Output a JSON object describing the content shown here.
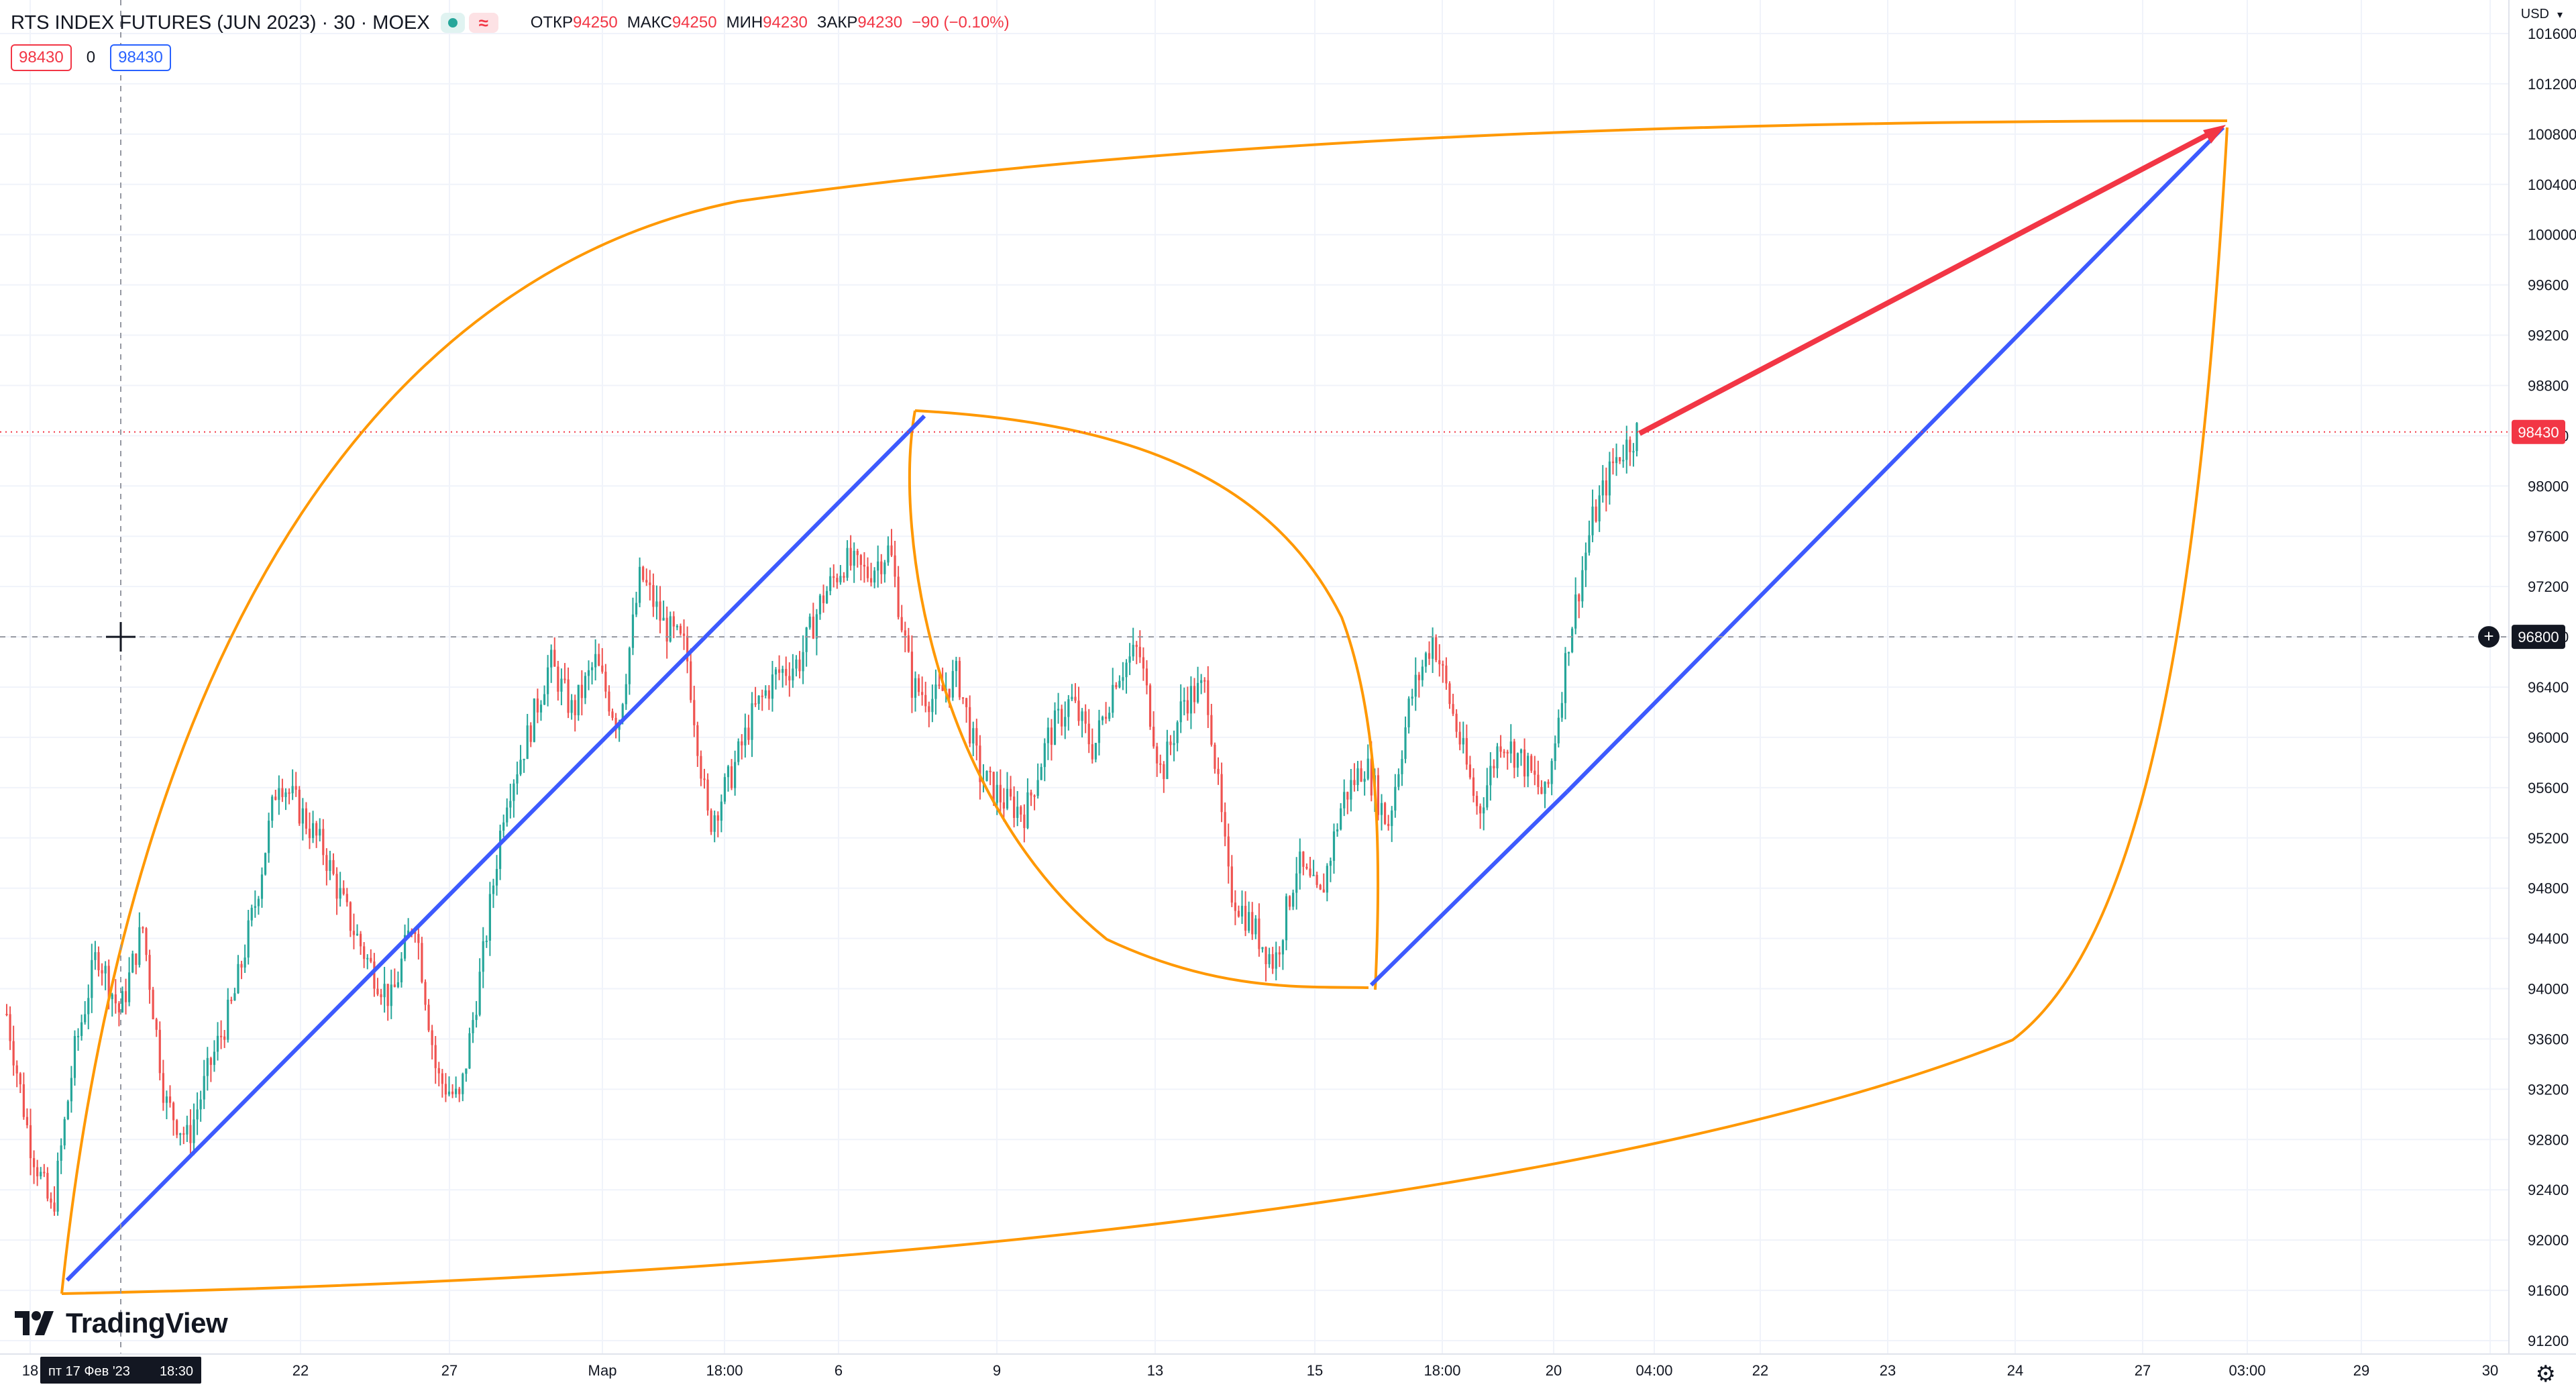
{
  "legend": {
    "symbol": "RTS INDEX FUTURES (JUN 2023) · 30 · MOEX",
    "approx_glyph": "≈",
    "open_label": "ОТКР",
    "open": "94250",
    "high_label": "МАКС",
    "high": "94250",
    "low_label": "МИН",
    "low": "94230",
    "close_label": "ЗАКР",
    "close": "94230",
    "change": "−90 (−0.10%)",
    "sell_price": "98430",
    "spread": "0",
    "buy_price": "98430"
  },
  "branding": {
    "logo_text": "TradingView"
  },
  "axis": {
    "currency": "USD",
    "currency_caret": "▾",
    "settings_icon": "gear-icon",
    "settings_glyph": "⚙"
  },
  "colors": {
    "up": "#26a69a",
    "down": "#ef5350",
    "blue_line": "#3d5afe",
    "red_line": "#f23645",
    "orange_curve": "#ff9800",
    "grid": "#f0f3fa",
    "crosshair": "#9598a1"
  },
  "chart_data": {
    "type": "candlestick",
    "symbol": "RTS INDEX FUTURES (JUN 2023)",
    "interval": "30",
    "exchange": "MOEX",
    "y_range": [
      91200,
      101600
    ],
    "y_ticks": [
      91200,
      91600,
      92000,
      92400,
      92800,
      93200,
      93600,
      94000,
      94400,
      94800,
      95200,
      95600,
      96000,
      96400,
      96800,
      97200,
      97600,
      98000,
      98400,
      98800,
      99200,
      99600,
      100000,
      100400,
      100800,
      101200,
      101600
    ],
    "x_ticks": [
      "18",
      "22",
      "27",
      "Мар",
      "18:00",
      "6",
      "9",
      "13",
      "15",
      "18:00",
      "20",
      "04:00",
      "22",
      "23",
      "24",
      "27",
      "03:00",
      "29",
      "30"
    ],
    "crosshair": {
      "time_label": "пт 17 Фев '23",
      "time_extra": "18:30",
      "price": 96800
    },
    "last_price": 98430,
    "grid": true,
    "price_path": [
      [
        0,
        93800
      ],
      [
        2,
        92800
      ],
      [
        4,
        92200
      ],
      [
        6,
        93500
      ],
      [
        8,
        94300
      ],
      [
        10,
        93800
      ],
      [
        12,
        94500
      ],
      [
        14,
        93100
      ],
      [
        16,
        92800
      ],
      [
        18,
        93400
      ],
      [
        20,
        93900
      ],
      [
        22,
        94700
      ],
      [
        24,
        95700
      ],
      [
        26,
        95400
      ],
      [
        28,
        95100
      ],
      [
        30,
        94600
      ],
      [
        32,
        94200
      ],
      [
        34,
        93900
      ],
      [
        36,
        94600
      ],
      [
        38,
        93300
      ],
      [
        40,
        93100
      ],
      [
        42,
        94200
      ],
      [
        44,
        95500
      ],
      [
        46,
        96000
      ],
      [
        48,
        96600
      ],
      [
        50,
        96200
      ],
      [
        52,
        96600
      ],
      [
        54,
        96100
      ],
      [
        56,
        97300
      ],
      [
        58,
        96900
      ],
      [
        60,
        96700
      ],
      [
        62,
        95300
      ],
      [
        64,
        95700
      ],
      [
        66,
        96200
      ],
      [
        68,
        96500
      ],
      [
        70,
        96600
      ],
      [
        72,
        97100
      ],
      [
        74,
        97400
      ],
      [
        76,
        97300
      ],
      [
        78,
        97500
      ],
      [
        80,
        96400
      ],
      [
        82,
        96300
      ],
      [
        84,
        96500
      ],
      [
        86,
        95700
      ],
      [
        88,
        95500
      ],
      [
        90,
        95400
      ],
      [
        92,
        96000
      ],
      [
        94,
        96300
      ],
      [
        96,
        95900
      ],
      [
        98,
        96500
      ],
      [
        100,
        96700
      ],
      [
        102,
        95700
      ],
      [
        104,
        96300
      ],
      [
        106,
        96400
      ],
      [
        108,
        94800
      ],
      [
        110,
        94500
      ],
      [
        112,
        94200
      ],
      [
        114,
        95000
      ],
      [
        116,
        94700
      ],
      [
        118,
        95500
      ],
      [
        120,
        95800
      ],
      [
        122,
        95300
      ],
      [
        124,
        96300
      ],
      [
        126,
        96800
      ],
      [
        128,
        96100
      ],
      [
        130,
        95400
      ],
      [
        132,
        96000
      ],
      [
        134,
        95800
      ],
      [
        136,
        95500
      ],
      [
        138,
        96800
      ],
      [
        140,
        97700
      ],
      [
        142,
        98200
      ],
      [
        144,
        98430
      ]
    ]
  }
}
